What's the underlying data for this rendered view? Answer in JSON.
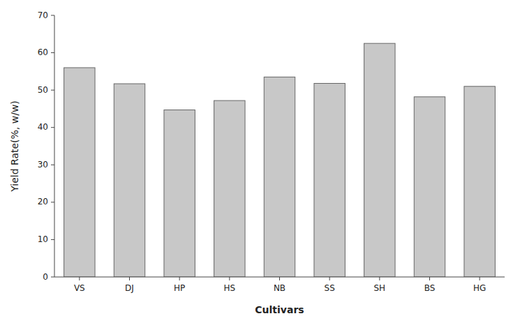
{
  "chart_data": {
    "type": "bar",
    "categories": [
      "VS",
      "DJ",
      "HP",
      "HS",
      "NB",
      "SS",
      "SH",
      "BS",
      "HG"
    ],
    "values": [
      56.0,
      51.7,
      44.7,
      47.2,
      53.5,
      51.8,
      62.5,
      48.2,
      51.0
    ],
    "color": "#c8c8c8",
    "xlabel": "Cultivars",
    "ylabel": "Yield Rate(%, w/w)",
    "ylim": [
      0,
      70
    ],
    "yticks": [
      0,
      10,
      20,
      30,
      40,
      50,
      60,
      70
    ],
    "grid": false
  }
}
